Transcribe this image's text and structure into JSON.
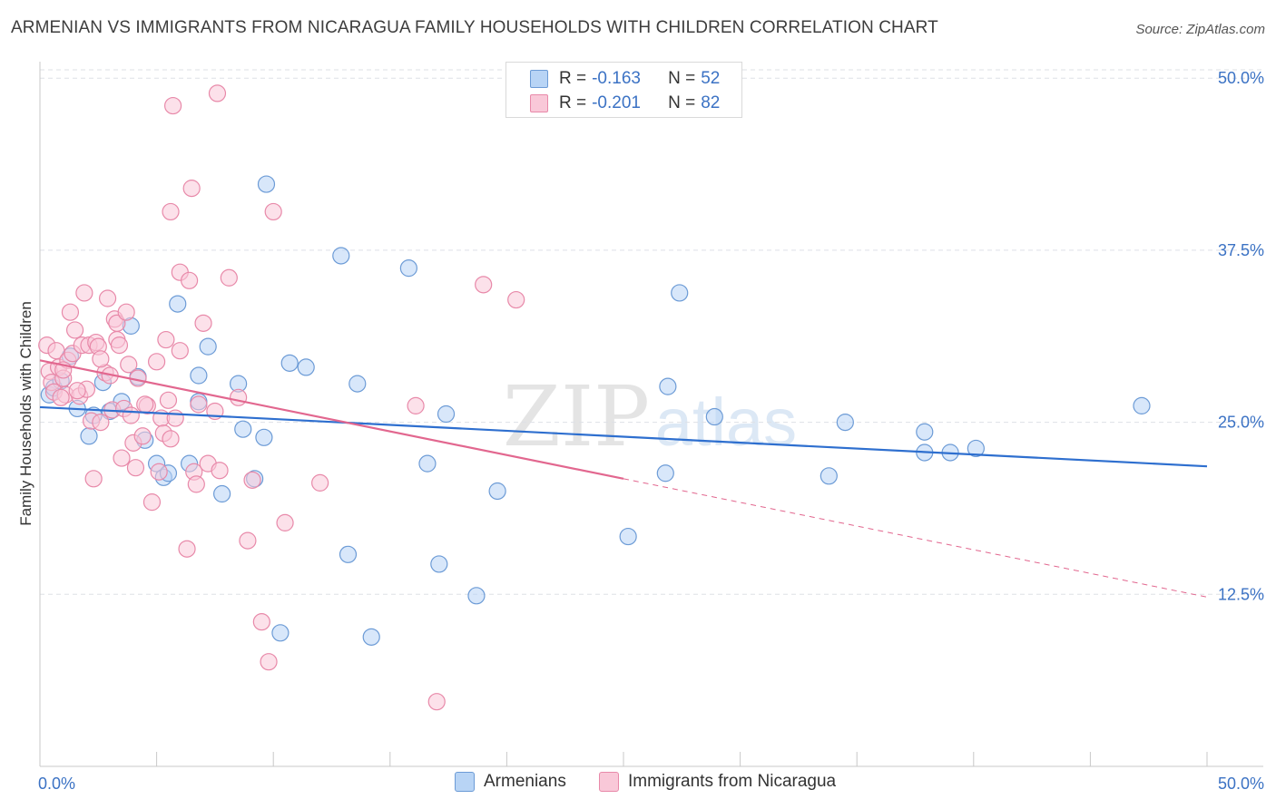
{
  "title": "ARMENIAN VS IMMIGRANTS FROM NICARAGUA FAMILY HOUSEHOLDS WITH CHILDREN CORRELATION CHART",
  "source": "Source: ZipAtlas.com",
  "watermark": {
    "zip": "ZIP",
    "atlas": "atlas"
  },
  "legend": {
    "r_label": "R =",
    "n_label": "N =",
    "rows": [
      {
        "r": "-0.163",
        "n": "52",
        "fill": "#b8d4f5",
        "stroke": "#6c9bd6"
      },
      {
        "r": "-0.201",
        "n": "82",
        "fill": "#f9c8d8",
        "stroke": "#e889a9"
      }
    ]
  },
  "chart_data": {
    "type": "scatter",
    "title": "ARMENIAN VS IMMIGRANTS FROM NICARAGUA FAMILY HOUSEHOLDS WITH CHILDREN CORRELATION CHART",
    "xlabel": "",
    "ylabel": "Family Households with Children",
    "xlim": [
      0,
      50
    ],
    "ylim": [
      0,
      51.2
    ],
    "x_tick_labels": [
      {
        "value": 0,
        "label": "0.0%"
      },
      {
        "value": 50,
        "label": "50.0%"
      }
    ],
    "y_tick_labels": [
      {
        "value": 12.5,
        "label": "12.5%"
      },
      {
        "value": 25.0,
        "label": "25.0%"
      },
      {
        "value": 37.5,
        "label": "37.5%"
      },
      {
        "value": 50.0,
        "label": "50.0%"
      }
    ],
    "grid": true,
    "series": [
      {
        "name": "Armenians",
        "fill": "#b8d4f5",
        "stroke": "#6c9bd6",
        "line_color": "#2e6fcf",
        "trend": {
          "x": [
            0,
            50
          ],
          "y": [
            26.1,
            21.8
          ],
          "dashed_from": null
        },
        "points": [
          [
            0.4,
            27.0
          ],
          [
            0.6,
            27.5
          ],
          [
            0.9,
            28.0
          ],
          [
            1.3,
            29.8
          ],
          [
            1.6,
            26.0
          ],
          [
            2.1,
            24.0
          ],
          [
            2.3,
            25.5
          ],
          [
            2.7,
            27.9
          ],
          [
            3.0,
            25.8
          ],
          [
            3.5,
            26.5
          ],
          [
            3.9,
            32.0
          ],
          [
            4.2,
            28.3
          ],
          [
            4.5,
            23.7
          ],
          [
            5.0,
            22.0
          ],
          [
            5.3,
            21.0
          ],
          [
            5.5,
            21.3
          ],
          [
            5.9,
            33.6
          ],
          [
            6.4,
            22.0
          ],
          [
            6.8,
            26.5
          ],
          [
            7.2,
            30.5
          ],
          [
            6.8,
            28.4
          ],
          [
            7.8,
            19.8
          ],
          [
            8.5,
            27.8
          ],
          [
            8.7,
            24.5
          ],
          [
            9.2,
            20.9
          ],
          [
            9.6,
            23.9
          ],
          [
            9.7,
            42.3
          ],
          [
            10.3,
            9.7
          ],
          [
            10.7,
            29.3
          ],
          [
            11.4,
            29.0
          ],
          [
            12.9,
            37.1
          ],
          [
            13.2,
            15.4
          ],
          [
            13.6,
            27.8
          ],
          [
            14.2,
            9.4
          ],
          [
            15.8,
            36.2
          ],
          [
            16.6,
            22.0
          ],
          [
            17.1,
            14.7
          ],
          [
            17.4,
            25.6
          ],
          [
            18.7,
            12.4
          ],
          [
            19.6,
            20.0
          ],
          [
            25.2,
            16.7
          ],
          [
            26.8,
            21.3
          ],
          [
            26.9,
            27.6
          ],
          [
            27.4,
            34.4
          ],
          [
            28.9,
            25.4
          ],
          [
            33.8,
            21.1
          ],
          [
            34.5,
            25.0
          ],
          [
            37.9,
            24.3
          ],
          [
            37.9,
            22.8
          ],
          [
            39.0,
            22.8
          ],
          [
            40.1,
            23.1
          ],
          [
            47.2,
            26.2
          ]
        ]
      },
      {
        "name": "Immigrants from Nicaragua",
        "fill": "#f9c8d8",
        "stroke": "#e889a9",
        "line_color": "#e2678f",
        "trend": {
          "x": [
            0,
            50
          ],
          "y": [
            29.5,
            12.3
          ],
          "dashed_from": 25.0
        },
        "points": [
          [
            0.3,
            30.6
          ],
          [
            0.4,
            28.7
          ],
          [
            0.5,
            27.9
          ],
          [
            0.6,
            27.2
          ],
          [
            0.7,
            30.2
          ],
          [
            0.8,
            29.0
          ],
          [
            1.0,
            28.2
          ],
          [
            1.1,
            27.0
          ],
          [
            1.2,
            29.5
          ],
          [
            1.3,
            33.0
          ],
          [
            1.4,
            30.0
          ],
          [
            1.5,
            31.7
          ],
          [
            1.7,
            26.9
          ],
          [
            1.8,
            30.6
          ],
          [
            1.9,
            34.4
          ],
          [
            2.0,
            27.4
          ],
          [
            2.1,
            30.6
          ],
          [
            2.2,
            25.1
          ],
          [
            2.3,
            20.9
          ],
          [
            2.4,
            30.8
          ],
          [
            2.5,
            30.5
          ],
          [
            2.6,
            25.0
          ],
          [
            2.8,
            28.6
          ],
          [
            2.9,
            34.0
          ],
          [
            3.0,
            28.4
          ],
          [
            3.1,
            25.9
          ],
          [
            3.2,
            32.5
          ],
          [
            3.3,
            32.2
          ],
          [
            3.3,
            31.0
          ],
          [
            3.4,
            30.6
          ],
          [
            3.5,
            22.4
          ],
          [
            3.6,
            26.0
          ],
          [
            3.7,
            33.0
          ],
          [
            3.8,
            29.2
          ],
          [
            3.9,
            25.5
          ],
          [
            4.0,
            23.5
          ],
          [
            4.1,
            21.7
          ],
          [
            4.2,
            28.2
          ],
          [
            4.4,
            24.0
          ],
          [
            4.6,
            26.2
          ],
          [
            4.8,
            19.2
          ],
          [
            5.0,
            29.4
          ],
          [
            5.1,
            21.4
          ],
          [
            5.2,
            25.3
          ],
          [
            5.3,
            24.2
          ],
          [
            5.4,
            31.0
          ],
          [
            5.5,
            26.6
          ],
          [
            5.6,
            40.3
          ],
          [
            5.7,
            48.0
          ],
          [
            5.8,
            25.3
          ],
          [
            6.0,
            30.2
          ],
          [
            6.0,
            35.9
          ],
          [
            6.3,
            15.8
          ],
          [
            6.4,
            35.3
          ],
          [
            6.5,
            42.0
          ],
          [
            6.6,
            21.4
          ],
          [
            6.7,
            20.5
          ],
          [
            6.8,
            26.3
          ],
          [
            7.0,
            32.2
          ],
          [
            7.2,
            22.0
          ],
          [
            7.5,
            25.8
          ],
          [
            7.6,
            48.9
          ],
          [
            7.7,
            21.5
          ],
          [
            8.1,
            35.5
          ],
          [
            8.5,
            26.8
          ],
          [
            8.9,
            16.4
          ],
          [
            9.1,
            20.8
          ],
          [
            9.5,
            10.5
          ],
          [
            9.8,
            7.6
          ],
          [
            10.0,
            40.3
          ],
          [
            10.5,
            17.7
          ],
          [
            12.0,
            20.6
          ],
          [
            16.1,
            26.2
          ],
          [
            17.0,
            4.7
          ],
          [
            19.0,
            35.0
          ],
          [
            20.4,
            33.9
          ],
          [
            1.0,
            28.8
          ],
          [
            0.9,
            26.8
          ],
          [
            2.6,
            29.6
          ],
          [
            4.5,
            26.3
          ],
          [
            5.6,
            23.8
          ],
          [
            1.6,
            27.3
          ]
        ]
      }
    ]
  },
  "bottom_legend": [
    {
      "label": "Armenians",
      "fill": "#b8d4f5",
      "stroke": "#6c9bd6"
    },
    {
      "label": "Immigrants from Nicaragua",
      "fill": "#f9c8d8",
      "stroke": "#e889a9"
    }
  ],
  "colors": {
    "axis_text": "#3b72c4",
    "grid": "#dde0e6",
    "axis": "#c8c8c8"
  }
}
